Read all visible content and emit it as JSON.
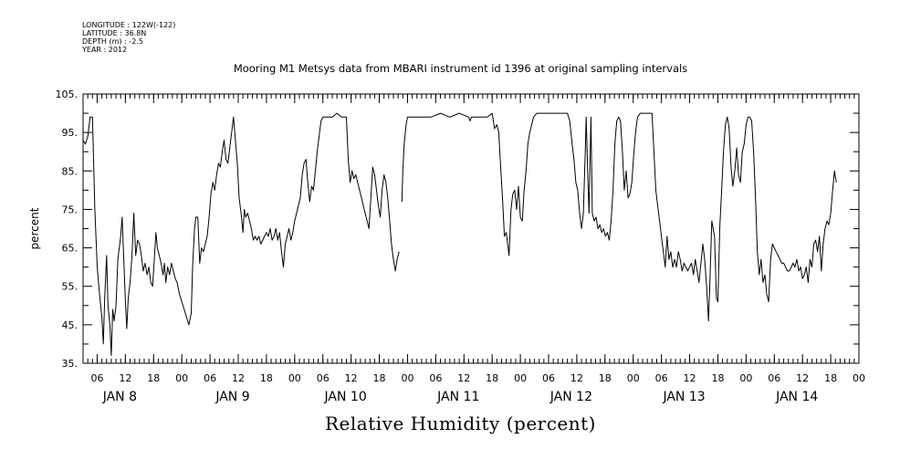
{
  "header": {
    "longitude": "LONGITUDE : 122W(-122)",
    "latitude": "LATITUDE : 36.8N",
    "depth": "DEPTH (m) : -2.5",
    "year": "YEAR : 2012"
  },
  "chart_data": {
    "type": "line",
    "title": "Mooring M1 Metsys data from MBARI instrument id 1396 at original sampling intervals",
    "xlabel": "Relative Humidity (percent)",
    "ylabel": "percent",
    "ylim": [
      35,
      105
    ],
    "yticks": [
      "105.",
      "95.",
      "85.",
      "75.",
      "65.",
      "55.",
      "45.",
      "35."
    ],
    "xlim_hours": [
      0,
      165
    ],
    "hour_ticks": [
      "06",
      "12",
      "18",
      "00",
      "06",
      "12",
      "18",
      "00",
      "06",
      "12",
      "18",
      "00",
      "06",
      "12",
      "18",
      "00",
      "06",
      "12",
      "18",
      "00",
      "06",
      "12",
      "18",
      "00",
      "06",
      "12",
      "18",
      "00"
    ],
    "days": [
      "JAN  8",
      "JAN  9",
      "JAN 10",
      "JAN 11",
      "JAN 12",
      "JAN 13",
      "JAN 14"
    ],
    "grid": false,
    "color": "#000000",
    "segments": [
      [
        [
          0.0,
          93
        ],
        [
          0.5,
          92
        ],
        [
          1.0,
          94
        ],
        [
          1.5,
          99
        ],
        [
          2.0,
          99
        ],
        [
          2.5,
          75
        ],
        [
          3.0,
          60
        ],
        [
          3.5,
          53
        ],
        [
          4.0,
          47
        ],
        [
          4.3,
          40
        ],
        [
          4.6,
          52
        ],
        [
          5.0,
          63
        ],
        [
          5.3,
          50
        ],
        [
          5.7,
          45
        ],
        [
          6.0,
          37
        ],
        [
          6.3,
          49
        ],
        [
          6.6,
          46
        ],
        [
          7.0,
          50
        ],
        [
          7.4,
          62
        ],
        [
          7.8,
          66
        ],
        [
          8.0,
          68
        ],
        [
          8.3,
          73
        ],
        [
          8.6,
          64
        ],
        [
          9.0,
          51
        ],
        [
          9.3,
          44
        ],
        [
          9.6,
          52
        ],
        [
          10.0,
          56
        ],
        [
          10.4,
          63
        ],
        [
          10.8,
          74
        ],
        [
          11.2,
          63
        ],
        [
          11.6,
          67
        ],
        [
          12.0,
          66
        ],
        [
          12.4,
          63
        ],
        [
          12.8,
          59
        ],
        [
          13.2,
          61
        ],
        [
          13.6,
          58
        ],
        [
          14.0,
          60
        ],
        [
          14.4,
          56
        ],
        [
          14.8,
          55
        ],
        [
          15.2,
          63
        ],
        [
          15.5,
          69
        ],
        [
          15.8,
          65
        ],
        [
          16.2,
          63
        ],
        [
          16.6,
          61
        ],
        [
          17.0,
          58
        ],
        [
          17.3,
          61
        ],
        [
          17.6,
          56
        ],
        [
          18.0,
          60
        ],
        [
          18.4,
          58
        ],
        [
          18.8,
          61
        ],
        [
          19.2,
          59
        ],
        [
          19.6,
          57
        ],
        [
          20.0,
          56
        ],
        [
          20.5,
          53
        ],
        [
          21.0,
          51
        ],
        [
          21.5,
          49
        ],
        [
          22.0,
          47
        ],
        [
          22.5,
          45
        ],
        [
          23.0,
          48
        ],
        [
          23.3,
          60
        ],
        [
          23.7,
          70
        ],
        [
          24.0,
          73
        ],
        [
          24.4,
          73
        ],
        [
          24.8,
          61
        ],
        [
          25.2,
          65
        ],
        [
          25.6,
          64
        ],
        [
          26.0,
          66
        ],
        [
          26.4,
          68
        ],
        [
          26.8,
          73
        ],
        [
          27.2,
          79
        ],
        [
          27.6,
          82
        ],
        [
          28.0,
          80
        ],
        [
          28.4,
          84
        ],
        [
          28.8,
          87
        ],
        [
          29.2,
          86
        ],
        [
          29.6,
          90
        ],
        [
          30.0,
          93
        ],
        [
          30.4,
          88
        ],
        [
          30.8,
          87
        ],
        [
          31.2,
          91
        ],
        [
          31.6,
          95
        ],
        [
          32.0,
          99
        ],
        [
          32.4,
          93
        ],
        [
          32.8,
          87
        ],
        [
          33.2,
          78
        ],
        [
          33.6,
          74
        ],
        [
          34.0,
          69
        ],
        [
          34.3,
          75
        ],
        [
          34.6,
          73
        ],
        [
          35.0,
          74
        ],
        [
          35.4,
          72
        ],
        [
          35.8,
          70
        ],
        [
          36.2,
          67
        ],
        [
          36.6,
          68
        ],
        [
          37.0,
          67
        ],
        [
          37.4,
          68
        ],
        [
          37.8,
          66
        ],
        [
          38.2,
          67
        ],
        [
          38.6,
          68
        ],
        [
          39.0,
          69
        ],
        [
          39.4,
          68
        ],
        [
          39.8,
          70
        ],
        [
          40.2,
          67
        ],
        [
          40.6,
          68
        ],
        [
          41.0,
          70
        ],
        [
          41.4,
          67
        ],
        [
          41.8,
          69
        ],
        [
          42.2,
          64
        ],
        [
          42.6,
          60
        ],
        [
          43.0,
          66
        ],
        [
          43.4,
          68
        ],
        [
          43.8,
          70
        ],
        [
          44.2,
          67
        ],
        [
          44.6,
          69
        ],
        [
          45.0,
          72
        ],
        [
          45.4,
          74
        ],
        [
          45.8,
          76
        ],
        [
          46.2,
          78
        ],
        [
          46.6,
          84
        ],
        [
          47.0,
          87
        ],
        [
          47.4,
          88
        ],
        [
          47.8,
          82
        ],
        [
          48.2,
          77
        ],
        [
          48.6,
          81
        ],
        [
          49.0,
          80
        ],
        [
          49.4,
          85
        ],
        [
          49.8,
          90
        ],
        [
          50.2,
          94
        ],
        [
          50.6,
          98
        ],
        [
          51.0,
          99
        ],
        [
          52.0,
          99
        ],
        [
          53.0,
          99
        ],
        [
          54.0,
          100
        ],
        [
          55.0,
          99
        ],
        [
          56.0,
          99
        ],
        [
          56.4,
          88
        ],
        [
          56.8,
          82
        ],
        [
          57.2,
          85
        ],
        [
          57.6,
          83
        ],
        [
          58.0,
          84
        ],
        [
          58.4,
          82
        ],
        [
          58.8,
          80
        ],
        [
          59.2,
          78
        ],
        [
          59.6,
          76
        ],
        [
          60.0,
          74
        ],
        [
          60.4,
          72
        ],
        [
          60.8,
          70
        ],
        [
          61.2,
          78
        ],
        [
          61.6,
          86
        ],
        [
          62.0,
          84
        ],
        [
          62.4,
          80
        ],
        [
          62.8,
          76
        ],
        [
          63.2,
          73
        ],
        [
          63.6,
          80
        ],
        [
          64.0,
          84
        ],
        [
          64.4,
          82
        ],
        [
          64.8,
          78
        ],
        [
          65.2,
          72
        ],
        [
          65.6,
          66
        ],
        [
          66.0,
          62
        ],
        [
          66.4,
          59
        ],
        [
          66.8,
          62
        ],
        [
          67.2,
          64
        ]
      ],
      [
        [
          67.8,
          77
        ],
        [
          68.0,
          85
        ],
        [
          68.3,
          92
        ],
        [
          68.7,
          97
        ],
        [
          69.0,
          99
        ],
        [
          70.0,
          99
        ],
        [
          72.0,
          99
        ],
        [
          74.0,
          99
        ],
        [
          76.0,
          100
        ],
        [
          78.0,
          99
        ],
        [
          80.0,
          100
        ],
        [
          82.0,
          99
        ],
        [
          82.3,
          98
        ],
        [
          82.6,
          99
        ],
        [
          84.0,
          99
        ],
        [
          86.0,
          99
        ],
        [
          87.0,
          100
        ],
        [
          87.5,
          96
        ],
        [
          88.0,
          97
        ],
        [
          88.4,
          95
        ],
        [
          88.8,
          86
        ],
        [
          89.2,
          78
        ],
        [
          89.6,
          68
        ],
        [
          90.0,
          69
        ],
        [
          90.3,
          66
        ],
        [
          90.6,
          63
        ],
        [
          91.0,
          75
        ],
        [
          91.4,
          79
        ],
        [
          91.8,
          80
        ],
        [
          92.2,
          75
        ],
        [
          92.6,
          81
        ],
        [
          93.0,
          73
        ],
        [
          93.4,
          72
        ],
        [
          93.8,
          80
        ],
        [
          94.2,
          85
        ],
        [
          94.6,
          92
        ],
        [
          95.0,
          95
        ],
        [
          95.4,
          97
        ],
        [
          95.8,
          99
        ],
        [
          96.5,
          100
        ],
        [
          98.0,
          100
        ],
        [
          100.0,
          100
        ],
        [
          102.0,
          100
        ],
        [
          103.0,
          100
        ],
        [
          103.5,
          98
        ],
        [
          104.0,
          92
        ],
        [
          104.4,
          88
        ],
        [
          104.8,
          82
        ],
        [
          105.2,
          80
        ],
        [
          105.6,
          74
        ],
        [
          106.0,
          70
        ],
        [
          106.4,
          74
        ],
        [
          106.8,
          90
        ],
        [
          107.0,
          99
        ],
        [
          107.3,
          85
        ],
        [
          107.6,
          74
        ],
        [
          108.0,
          99
        ],
        [
          108.3,
          74
        ],
        [
          108.7,
          72
        ],
        [
          109.1,
          73
        ],
        [
          109.5,
          70
        ],
        [
          109.9,
          71
        ],
        [
          110.3,
          69
        ],
        [
          110.7,
          70
        ],
        [
          111.1,
          68
        ],
        [
          111.5,
          69
        ],
        [
          111.9,
          67
        ],
        [
          112.3,
          72
        ],
        [
          112.7,
          80
        ],
        [
          113.1,
          92
        ],
        [
          113.5,
          98
        ],
        [
          113.9,
          99
        ],
        [
          114.3,
          98
        ],
        [
          114.7,
          90
        ],
        [
          115.1,
          80
        ],
        [
          115.5,
          85
        ],
        [
          115.9,
          78
        ],
        [
          116.3,
          79
        ],
        [
          116.7,
          82
        ],
        [
          117.1,
          89
        ],
        [
          117.5,
          95
        ],
        [
          117.9,
          99
        ],
        [
          118.5,
          100
        ],
        [
          120.0,
          100
        ],
        [
          121.0,
          100
        ],
        [
          121.4,
          90
        ],
        [
          121.8,
          80
        ],
        [
          122.2,
          76
        ],
        [
          122.6,
          72
        ],
        [
          123.0,
          68
        ],
        [
          123.4,
          64
        ],
        [
          123.8,
          60
        ],
        [
          124.2,
          68
        ],
        [
          124.6,
          62
        ],
        [
          125.0,
          64
        ],
        [
          125.4,
          60
        ],
        [
          125.8,
          62
        ],
        [
          126.2,
          60
        ],
        [
          126.6,
          64
        ],
        [
          127.0,
          62
        ],
        [
          127.4,
          59
        ],
        [
          127.8,
          61
        ],
        [
          128.2,
          60
        ],
        [
          128.6,
          59
        ],
        [
          129.0,
          60
        ],
        [
          129.4,
          61
        ],
        [
          129.8,
          58
        ],
        [
          130.2,
          62
        ],
        [
          130.6,
          59
        ],
        [
          131.0,
          56
        ],
        [
          131.4,
          61
        ],
        [
          131.8,
          66
        ],
        [
          132.2,
          62
        ],
        [
          132.6,
          55
        ],
        [
          133.0,
          46
        ],
        [
          133.3,
          56
        ],
        [
          133.7,
          72
        ],
        [
          134.0,
          70
        ],
        [
          134.3,
          68
        ],
        [
          134.7,
          52
        ],
        [
          135.0,
          51
        ],
        [
          135.4,
          70
        ],
        [
          135.8,
          80
        ],
        [
          136.2,
          90
        ],
        [
          136.6,
          97
        ],
        [
          137.0,
          99
        ],
        [
          137.4,
          96
        ],
        [
          137.8,
          86
        ],
        [
          138.2,
          81
        ],
        [
          138.6,
          85
        ],
        [
          139.0,
          91
        ],
        [
          139.4,
          84
        ],
        [
          139.8,
          82
        ],
        [
          140.2,
          90
        ],
        [
          140.6,
          92
        ],
        [
          141.0,
          97
        ],
        [
          141.4,
          99
        ],
        [
          141.8,
          99
        ],
        [
          142.2,
          98
        ],
        [
          142.6,
          90
        ],
        [
          143.0,
          78
        ],
        [
          143.4,
          64
        ],
        [
          143.8,
          58
        ],
        [
          144.2,
          62
        ],
        [
          144.6,
          56
        ],
        [
          145.0,
          58
        ],
        [
          145.4,
          53
        ],
        [
          145.8,
          51
        ],
        [
          146.2,
          62
        ],
        [
          146.6,
          66
        ],
        [
          147.0,
          65
        ],
        [
          147.4,
          64
        ],
        [
          147.8,
          63
        ],
        [
          148.2,
          62
        ],
        [
          148.6,
          61
        ],
        [
          149.0,
          61
        ],
        [
          149.4,
          60
        ],
        [
          149.8,
          59
        ],
        [
          150.2,
          59
        ],
        [
          150.6,
          60
        ],
        [
          151.0,
          61
        ],
        [
          151.4,
          60
        ],
        [
          151.8,
          62
        ],
        [
          152.2,
          59
        ],
        [
          152.6,
          60
        ],
        [
          153.0,
          57
        ],
        [
          153.4,
          58
        ],
        [
          153.8,
          60
        ],
        [
          154.2,
          56
        ],
        [
          154.6,
          62
        ],
        [
          155.0,
          60
        ],
        [
          155.4,
          66
        ],
        [
          155.8,
          67
        ],
        [
          156.2,
          64
        ],
        [
          156.6,
          68
        ],
        [
          157.0,
          59
        ],
        [
          157.4,
          66
        ],
        [
          157.8,
          70
        ],
        [
          158.2,
          72
        ],
        [
          158.6,
          71
        ],
        [
          159.0,
          74
        ],
        [
          159.4,
          80
        ],
        [
          159.8,
          85
        ],
        [
          160.2,
          82
        ]
      ]
    ]
  }
}
